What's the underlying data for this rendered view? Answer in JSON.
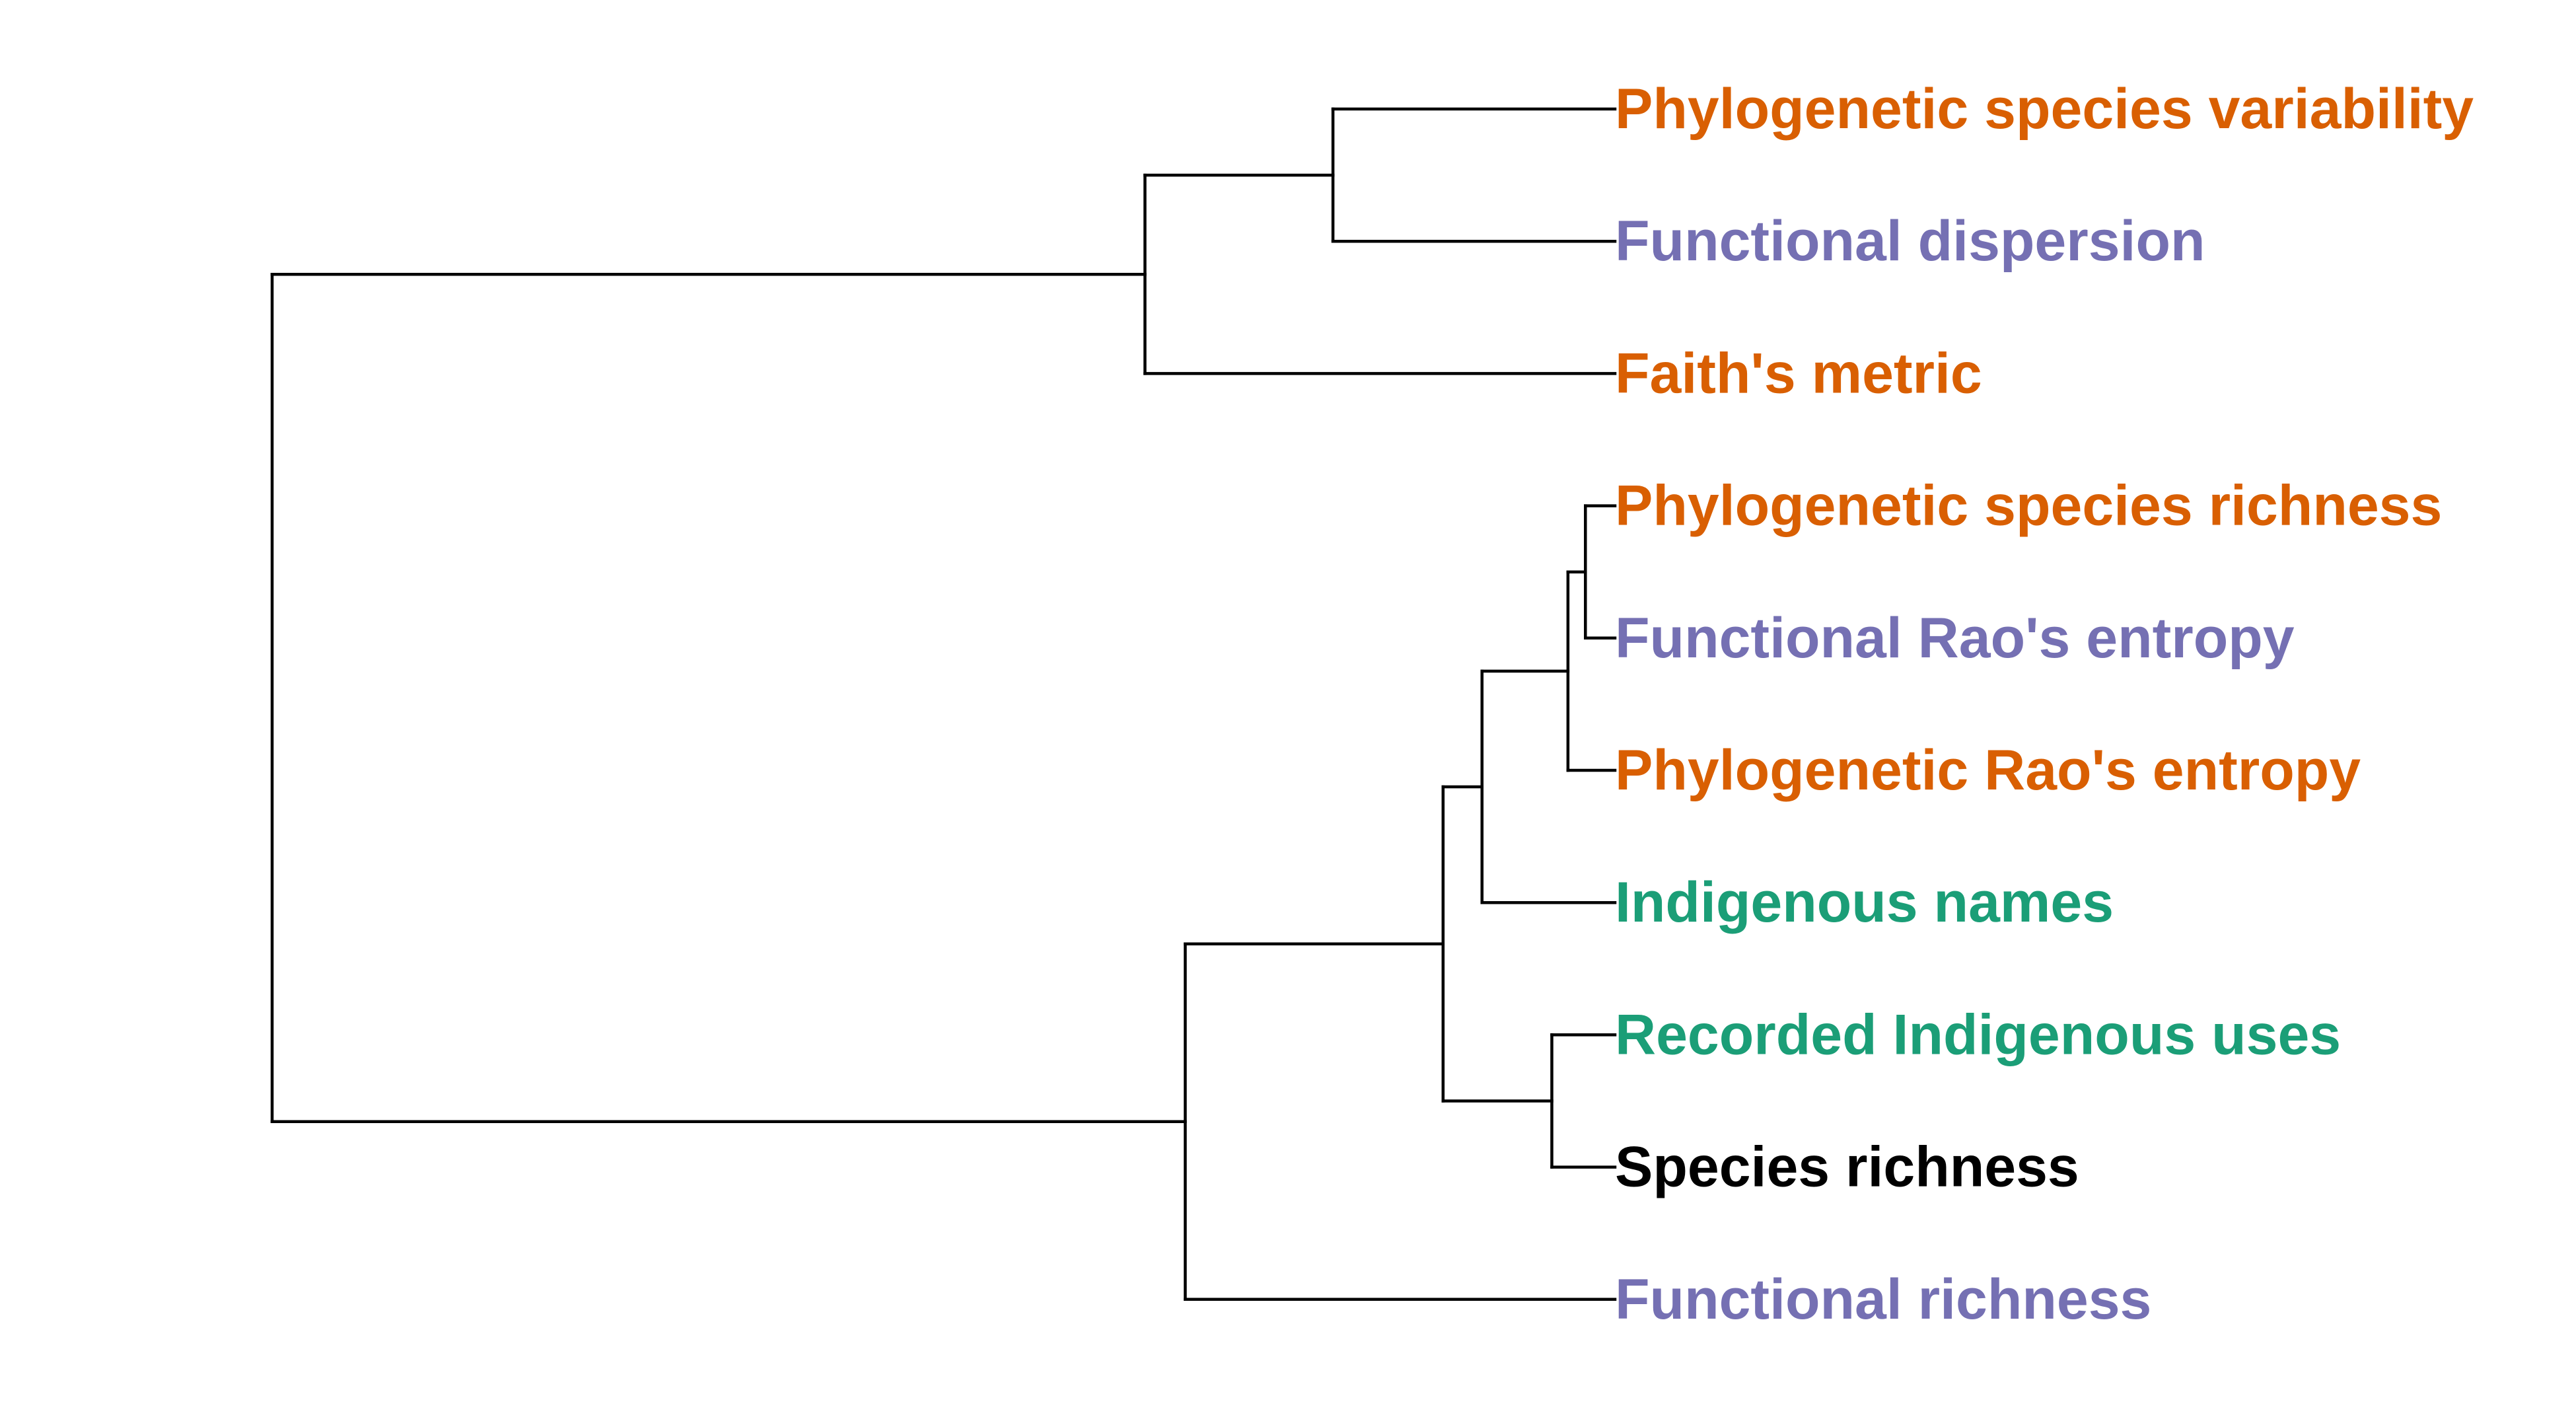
{
  "leaves": [
    {
      "id": "psv",
      "label": "Phylogenetic species variability",
      "group": "phylogenetic"
    },
    {
      "id": "fdis",
      "label": "Functional dispersion",
      "group": "functional"
    },
    {
      "id": "faith",
      "label": "Faith's metric",
      "group": "phylogenetic"
    },
    {
      "id": "psr",
      "label": "Phylogenetic species richness",
      "group": "phylogenetic"
    },
    {
      "id": "frao",
      "label": "Functional Rao's entropy",
      "group": "functional"
    },
    {
      "id": "prao",
      "label": "Phylogenetic Rao's entropy",
      "group": "phylogenetic"
    },
    {
      "id": "ind",
      "label": "Indigenous names",
      "group": "indigenous"
    },
    {
      "id": "riu",
      "label": "Recorded Indigenous uses",
      "group": "indigenous"
    },
    {
      "id": "sr",
      "label": "Species richness",
      "group": "taxonomic"
    },
    {
      "id": "fric",
      "label": "Functional richness",
      "group": "functional"
    }
  ],
  "group_colors": {
    "phylogenetic": "#D95F02",
    "functional": "#7570B3",
    "indigenous": "#1B9E77",
    "taxonomic": "#000000"
  },
  "tree": {
    "height": 1.0,
    "children": [
      {
        "height": 0.35,
        "children": [
          {
            "height": 0.21,
            "children": [
              {
                "leaf": "psv"
              },
              {
                "leaf": "fdis"
              }
            ]
          },
          {
            "leaf": "faith"
          }
        ]
      },
      {
        "height": 0.32,
        "children": [
          {
            "height": 0.128,
            "children": [
              {
                "height": 0.099,
                "children": [
                  {
                    "height": 0.035,
                    "children": [
                      {
                        "height": 0.022,
                        "children": [
                          {
                            "leaf": "psr"
                          },
                          {
                            "leaf": "frao"
                          }
                        ]
                      },
                      {
                        "leaf": "prao"
                      }
                    ]
                  },
                  {
                    "leaf": "ind"
                  }
                ]
              },
              {
                "height": 0.047,
                "children": [
                  {
                    "leaf": "riu"
                  },
                  {
                    "leaf": "sr"
                  }
                ]
              }
            ]
          },
          {
            "leaf": "fric"
          }
        ]
      }
    ]
  }
}
